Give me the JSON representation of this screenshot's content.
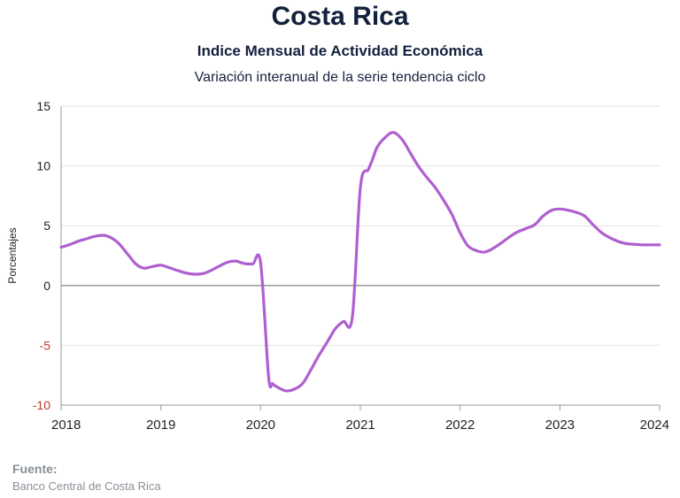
{
  "header": {
    "title": "Costa Rica",
    "subtitle": "Indice Mensual de  Actividad Económica",
    "caption": "Variación interanual de la serie tendencia ciclo"
  },
  "footer": {
    "source_label": "Fuente:",
    "source_text": "Banco Central de Costa Rica"
  },
  "colors": {
    "line": "#b05fd0",
    "negative_tick": "#c0392b",
    "text": "#14213d",
    "grid": "#e2e2e2",
    "zero_line": "#777777"
  },
  "chart_data": {
    "type": "line",
    "title": "Costa Rica",
    "ylabel": "Porcentajes",
    "xlabel": "",
    "xlim": [
      2018,
      2024
    ],
    "ylim": [
      -10,
      15
    ],
    "grid": true,
    "legend": "none",
    "x_ticks": [
      "2018",
      "2019",
      "2020",
      "2021",
      "2022",
      "2023",
      "2024"
    ],
    "y_ticks": [
      "15",
      "10",
      "5",
      "0",
      "-5",
      "-10"
    ],
    "series": [
      {
        "x": [
          2018.0,
          2018.08,
          2018.17,
          2018.25,
          2018.33,
          2018.42,
          2018.5,
          2018.58,
          2018.67,
          2018.75,
          2018.83,
          2018.92,
          2019.0,
          2019.08,
          2019.17,
          2019.25,
          2019.33,
          2019.42,
          2019.5,
          2019.58,
          2019.67,
          2019.75,
          2019.83,
          2019.92,
          2020.0,
          2020.08,
          2020.12,
          2020.17,
          2020.25,
          2020.33,
          2020.42,
          2020.5,
          2020.58,
          2020.67,
          2020.75,
          2020.83,
          2020.92,
          2021.0,
          2021.08,
          2021.12,
          2021.17,
          2021.25,
          2021.33,
          2021.42,
          2021.5,
          2021.58,
          2021.67,
          2021.75,
          2021.83,
          2021.92,
          2022.0,
          2022.08,
          2022.17,
          2022.25,
          2022.33,
          2022.42,
          2022.5,
          2022.58,
          2022.67,
          2022.75,
          2022.83,
          2022.92,
          2023.0,
          2023.08,
          2023.17,
          2023.25,
          2023.33,
          2023.42,
          2023.5,
          2023.58,
          2023.67,
          2023.75,
          2023.83,
          2023.92,
          2024.0
        ],
        "y": [
          3.2,
          3.4,
          3.7,
          3.9,
          4.1,
          4.2,
          4.0,
          3.5,
          2.6,
          1.8,
          1.45,
          1.6,
          1.7,
          1.5,
          1.25,
          1.05,
          0.95,
          1.0,
          1.25,
          1.6,
          1.95,
          2.05,
          1.85,
          1.8,
          1.9,
          -7.6,
          -8.2,
          -8.5,
          -8.8,
          -8.7,
          -8.2,
          -7.1,
          -5.9,
          -4.7,
          -3.6,
          -3.0,
          -2.6,
          8.2,
          9.7,
          10.5,
          11.6,
          12.4,
          12.8,
          12.2,
          11.1,
          10.0,
          9.0,
          8.2,
          7.2,
          5.9,
          4.4,
          3.3,
          2.9,
          2.8,
          3.1,
          3.6,
          4.1,
          4.5,
          4.8,
          5.1,
          5.8,
          6.3,
          6.4,
          6.3,
          6.1,
          5.8,
          5.1,
          4.4,
          4.0,
          3.7,
          3.5,
          3.45,
          3.4,
          3.4,
          3.4
        ]
      }
    ]
  }
}
